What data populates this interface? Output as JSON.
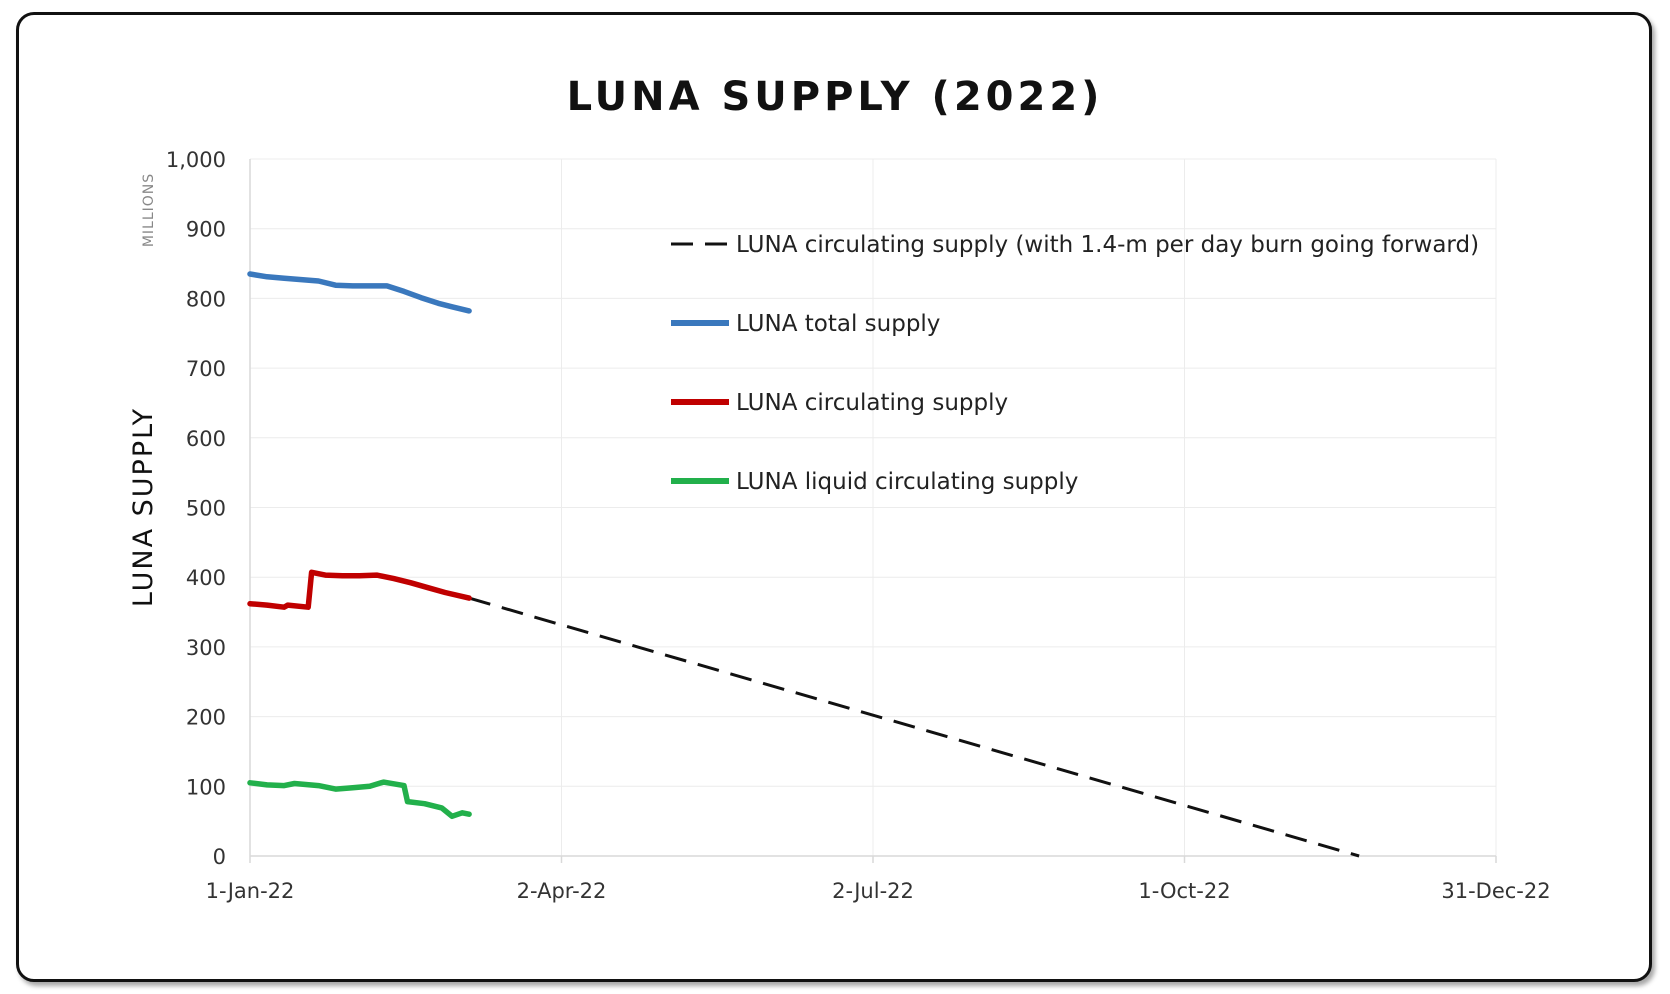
{
  "chart_data": {
    "type": "line",
    "title": "LUNA SUPPLY (2022)",
    "ylabel": "LUNA   SUPPLY",
    "yunit": "MILLIONS",
    "ylim": [
      0,
      1000
    ],
    "yticks": [
      0,
      100,
      200,
      300,
      400,
      500,
      600,
      700,
      800,
      900,
      1000
    ],
    "ytick_labels": [
      "0",
      "100",
      "200",
      "300",
      "400",
      "500",
      "600",
      "700",
      "800",
      "900",
      "1,000"
    ],
    "xlim": [
      "2022-01-01",
      "2022-12-31"
    ],
    "xticks": [
      "2022-01-01",
      "2022-04-02",
      "2022-07-02",
      "2022-10-01",
      "2022-12-31"
    ],
    "xtick_labels": [
      "1-Jan-22",
      "2-Apr-22",
      "2-Jul-22",
      "1-Oct-22",
      "31-Dec-22"
    ],
    "grid": true,
    "legend_position": "upper-right",
    "series": [
      {
        "name": "LUNA circulating supply (with 1.4-m per day burn going forward)",
        "color": "#111111",
        "style": "dashed",
        "x": [
          "2022-03-06",
          "2022-11-21"
        ],
        "y": [
          370,
          0
        ]
      },
      {
        "name": "LUNA total supply",
        "color": "#3a78bd",
        "style": "solid",
        "x": [
          "2022-01-01",
          "2022-01-06",
          "2022-01-11",
          "2022-01-16",
          "2022-01-21",
          "2022-01-26",
          "2022-01-31",
          "2022-02-05",
          "2022-02-10",
          "2022-02-15",
          "2022-02-20",
          "2022-02-25",
          "2022-03-01",
          "2022-03-06"
        ],
        "y": [
          835,
          831,
          829,
          827,
          825,
          819,
          818,
          818,
          818,
          810,
          801,
          793,
          788,
          782
        ]
      },
      {
        "name": "LUNA circulating supply",
        "color": "#c00000",
        "style": "solid",
        "x": [
          "2022-01-01",
          "2022-01-06",
          "2022-01-11",
          "2022-01-12",
          "2022-01-18",
          "2022-01-19",
          "2022-01-23",
          "2022-01-28",
          "2022-02-02",
          "2022-02-07",
          "2022-02-12",
          "2022-02-17",
          "2022-02-22",
          "2022-02-27",
          "2022-03-06"
        ],
        "y": [
          362,
          360,
          357,
          360,
          357,
          407,
          403,
          402,
          402,
          403,
          398,
          392,
          385,
          378,
          370
        ]
      },
      {
        "name": "LUNA liquid circulating supply",
        "color": "#22b04b",
        "style": "solid",
        "x": [
          "2022-01-01",
          "2022-01-06",
          "2022-01-11",
          "2022-01-14",
          "2022-01-21",
          "2022-01-26",
          "2022-01-31",
          "2022-02-05",
          "2022-02-09",
          "2022-02-15",
          "2022-02-16",
          "2022-02-21",
          "2022-02-26",
          "2022-03-01",
          "2022-03-04",
          "2022-03-06"
        ],
        "y": [
          105,
          102,
          101,
          104,
          101,
          96,
          98,
          100,
          106,
          101,
          78,
          75,
          69,
          57,
          62,
          60
        ]
      }
    ]
  }
}
